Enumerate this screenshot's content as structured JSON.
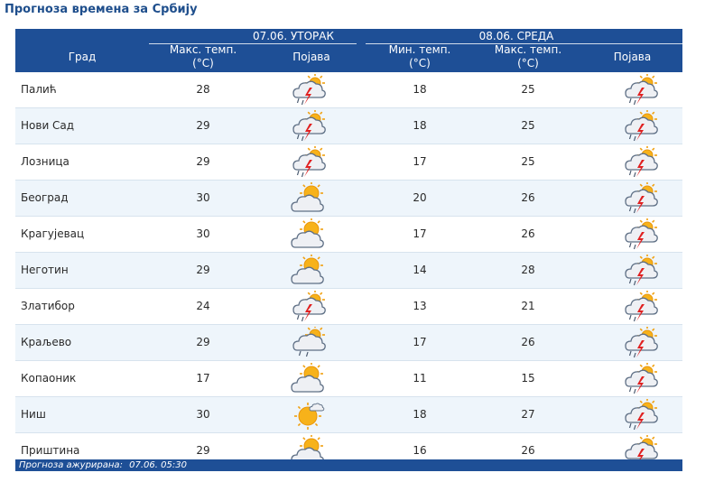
{
  "title": "Прогноза времена за Србију",
  "header": {
    "day1": "07.06. УТОРАК",
    "day2": "08.06. СРЕДА",
    "city": "Град",
    "max1_line1": "Макс. темп.",
    "max1_line2": "(°C)",
    "phen1": "Појава",
    "min2_line1": "Мин. темп.",
    "min2_line2": "(°C)",
    "max2_line1": "Макс. темп.",
    "max2_line2": "(°C)",
    "phen2": "Појава"
  },
  "rows": [
    {
      "city": "Палић",
      "max1": "28",
      "icon1": "thunderstorm-icon",
      "min2": "18",
      "max2": "25",
      "icon2": "thunderstorm-icon"
    },
    {
      "city": "Нови Сад",
      "max1": "29",
      "icon1": "thunderstorm-icon",
      "min2": "18",
      "max2": "25",
      "icon2": "thunderstorm-icon"
    },
    {
      "city": "Лозница",
      "max1": "29",
      "icon1": "thunderstorm-icon",
      "min2": "17",
      "max2": "25",
      "icon2": "thunderstorm-icon"
    },
    {
      "city": "Београд",
      "max1": "30",
      "icon1": "partly-cloudy-icon",
      "min2": "20",
      "max2": "26",
      "icon2": "thunderstorm-icon"
    },
    {
      "city": "Крагујевац",
      "max1": "30",
      "icon1": "partly-cloudy-icon",
      "min2": "17",
      "max2": "26",
      "icon2": "thunderstorm-icon"
    },
    {
      "city": "Неготин",
      "max1": "29",
      "icon1": "partly-cloudy-icon",
      "min2": "14",
      "max2": "28",
      "icon2": "thunderstorm-icon"
    },
    {
      "city": "Златибор",
      "max1": "24",
      "icon1": "thunderstorm-icon",
      "min2": "13",
      "max2": "21",
      "icon2": "thunderstorm-icon"
    },
    {
      "city": "Краљево",
      "max1": "29",
      "icon1": "cloud-rain-icon",
      "min2": "17",
      "max2": "26",
      "icon2": "thunderstorm-icon"
    },
    {
      "city": "Копаоник",
      "max1": "17",
      "icon1": "partly-cloudy-icon",
      "min2": "11",
      "max2": "15",
      "icon2": "thunderstorm-icon"
    },
    {
      "city": "Ниш",
      "max1": "30",
      "icon1": "sunny-icon",
      "min2": "18",
      "max2": "27",
      "icon2": "thunderstorm-icon"
    },
    {
      "city": "Приштина",
      "max1": "29",
      "icon1": "partly-cloudy-icon",
      "min2": "16",
      "max2": "26",
      "icon2": "thunderstorm-icon"
    }
  ],
  "footer": {
    "label": "Прогноза ажурирана:",
    "value": "07.06. 05:30"
  }
}
